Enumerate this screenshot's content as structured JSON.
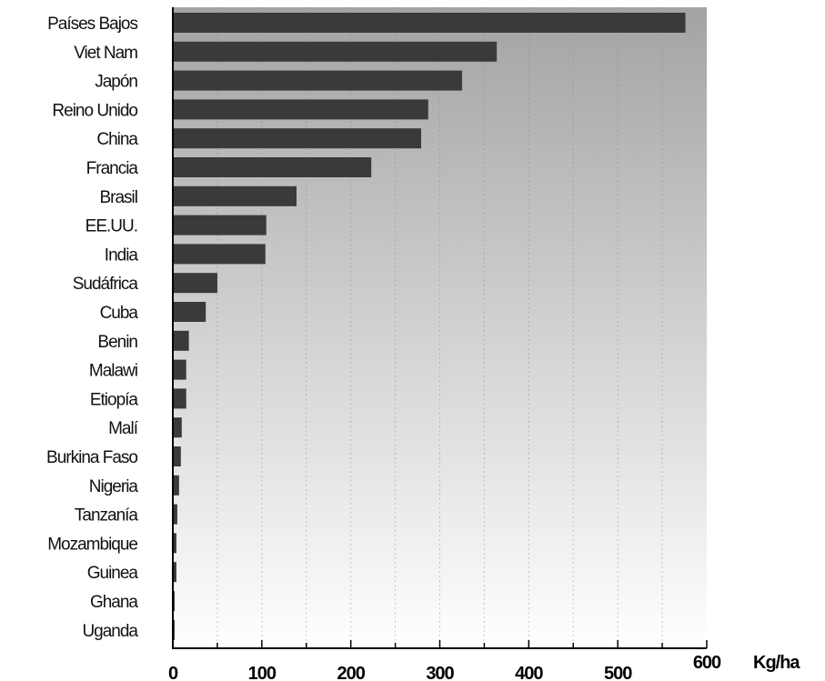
{
  "chart_data": {
    "type": "bar",
    "orientation": "horizontal",
    "categories": [
      "Países Bajos",
      "Viet Nam",
      "Japón",
      "Reino Unido",
      "China",
      "Francia",
      "Brasil",
      "EE.UU.",
      "India",
      "Sudáfrica",
      "Cuba",
      "Benin",
      "Malawi",
      "Etiopía",
      "Malí",
      "Burkina Faso",
      "Nigeria",
      "Tanzanía",
      "Mozambique",
      "Guinea",
      "Ghana",
      "Uganda"
    ],
    "values": [
      575,
      363,
      324,
      286,
      278,
      222,
      138,
      104,
      103,
      49,
      36,
      17,
      14,
      14,
      9,
      8,
      6,
      4,
      3,
      3,
      1,
      1
    ],
    "xlim": [
      0,
      600
    ],
    "xticks": [
      "0",
      "100",
      "200",
      "300",
      "400",
      "500",
      "600"
    ],
    "xlabel": "Kg/ha",
    "title": "",
    "ylabel": "",
    "grid": "vertical",
    "colors": {
      "bar": "#3a3a3a",
      "background_top": "#a3a3a3",
      "background_bottom": "#ffffff",
      "axis": "#000000",
      "grid": "#888888"
    }
  }
}
